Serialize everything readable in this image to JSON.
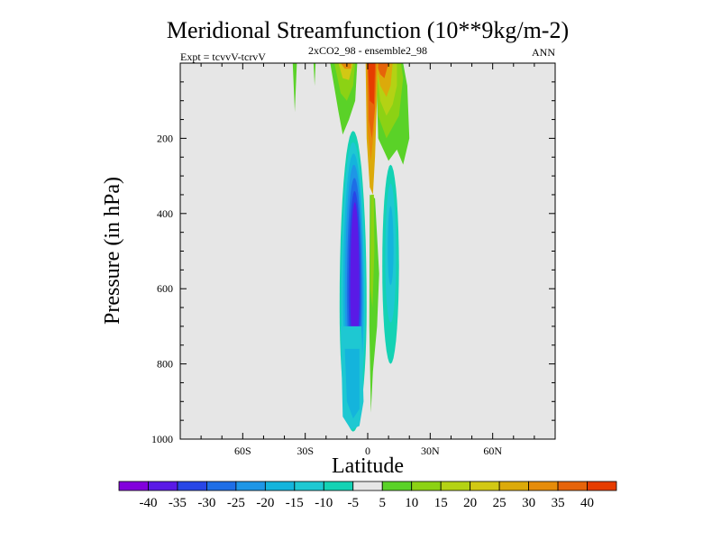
{
  "chart_data": {
    "type": "heatmap",
    "title": "Meridional Streamfunction (10**9kg/m-2)",
    "subtitle_left": "Expt = tcvvV-tcrvV",
    "subtitle_center": "2xCO2_98 - ensemble2_98",
    "subtitle_right": "ANN",
    "xlabel": "Latitude",
    "ylabel": "Pressure (in hPa)",
    "xlim": [
      -90,
      90
    ],
    "ylim": [
      1000,
      0
    ],
    "x_ticks": [
      {
        "value": -60,
        "label": "60S"
      },
      {
        "value": -30,
        "label": "30S"
      },
      {
        "value": 0,
        "label": "0"
      },
      {
        "value": 30,
        "label": "30N"
      },
      {
        "value": 60,
        "label": "60N"
      }
    ],
    "y_ticks": [
      {
        "value": 200,
        "label": "200"
      },
      {
        "value": 400,
        "label": "400"
      },
      {
        "value": 600,
        "label": "600"
      },
      {
        "value": 800,
        "label": "800"
      },
      {
        "value": 1000,
        "label": "1000"
      }
    ],
    "background_color": "#e6e6e6",
    "colorbar": {
      "labels": [
        "-40",
        "-35",
        "-30",
        "-25",
        "-20",
        "-15",
        "-10",
        "-5",
        "5",
        "10",
        "15",
        "20",
        "25",
        "30",
        "35",
        "40"
      ],
      "colors": [
        "#8200dc",
        "#5a1ae6",
        "#2846e6",
        "#1e6ee6",
        "#1e96e6",
        "#14b4dc",
        "#1ec8d2",
        "#14d2b4",
        "#e6e6e6",
        "#5ad228",
        "#8cd214",
        "#b4d214",
        "#d2c814",
        "#dcaa0a",
        "#e68c0a",
        "#e6640a",
        "#e63c00"
      ]
    },
    "features": [
      {
        "name": "Southern hemisphere negative cell (Hadley)",
        "lat_min": -13,
        "lat_max": -1,
        "p_top": 220,
        "p_bottom": 970,
        "min_value": -40,
        "color_index": 1
      },
      {
        "name": "Tropical upper-level positive core",
        "lat_min": -1,
        "lat_max": 5,
        "p_top": 0,
        "p_bottom": 350,
        "max_value": 40,
        "color_index": 16
      },
      {
        "name": "Northern tropical upper positive tongue",
        "lat_min": 4,
        "lat_max": 17,
        "p_top": 0,
        "p_bottom": 260,
        "max_value": 25
      },
      {
        "name": "Southern upper positive tongue",
        "lat_min": -18,
        "lat_max": -5,
        "p_top": 0,
        "p_bottom": 190,
        "max_value": 20
      },
      {
        "name": "Northern mid-level negative cell",
        "lat_min": 7,
        "lat_max": 15,
        "p_top": 280,
        "p_bottom": 800,
        "min_value": -10
      },
      {
        "name": "Equatorial lower positive filament",
        "lat_min": 1,
        "lat_max": 5,
        "p_top": 450,
        "p_bottom": 930,
        "max_value": 10
      }
    ]
  }
}
